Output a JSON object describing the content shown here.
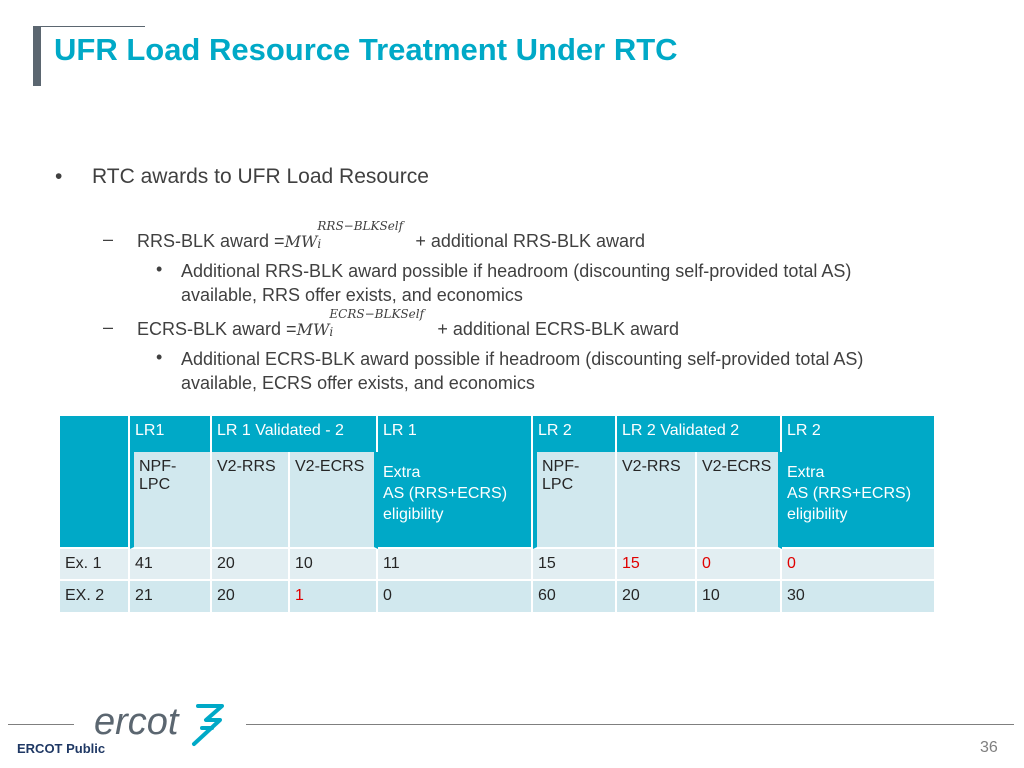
{
  "slide": {
    "title": "UFR Load Resource Treatment Under RTC",
    "bullet": "RTC awards to UFR Load Resource",
    "rrs": {
      "prefix": "RRS-BLK award =",
      "mw": "MW",
      "sup": "RRS−BLKSelf",
      "sub": "i",
      "suffix": "+ additional RRS-BLK award",
      "note_line1": "Additional RRS-BLK award possible if headroom (discounting self-provided total AS)",
      "note_line2": "available, RRS offer exists, and economics"
    },
    "ecrs": {
      "prefix": "ECRS-BLK award =",
      "mw": "MW",
      "sup": "ECRS−BLKSelf",
      "sub": "i",
      "suffix": "+ additional ECRS-BLK award",
      "note_line1": "Additional ECRS-BLK award possible if headroom (discounting self-provided total AS)",
      "note_line2": "available, ECRS offer exists, and economics"
    },
    "bullet_glyph": "•",
    "dash_glyph": "–"
  },
  "table": {
    "group_headers": [
      "LR1",
      "LR 1 Validated - 2",
      "LR 1",
      "LR 2",
      "LR 2 Validated 2",
      "LR 2"
    ],
    "sub_headers": [
      "NPF-LPC",
      "V2-RRS",
      "V2-ECRS",
      "NPF-LPC",
      "V2-RRS",
      "V2-ECRS"
    ],
    "extra_line1": "Extra",
    "extra_line2": "AS (RRS+ECRS)",
    "extra_line3": "eligibility",
    "rows": [
      {
        "label": "Ex. 1",
        "cells": [
          "41",
          "20",
          "10",
          "11",
          "15",
          "15",
          "0",
          "0"
        ]
      },
      {
        "label": "EX. 2",
        "cells": [
          "21",
          "20",
          "1",
          "0",
          "60",
          "20",
          "10",
          "30"
        ]
      }
    ],
    "red_color": "#e00000",
    "header_color": "#00a9c7"
  },
  "footer": {
    "label": "ERCOT Public",
    "page": "36",
    "logo_text": "ercot"
  }
}
